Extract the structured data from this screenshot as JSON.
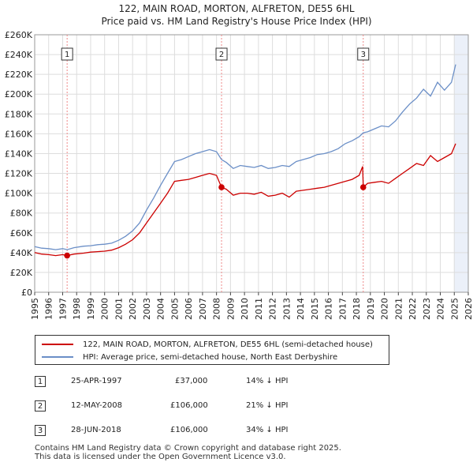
{
  "title_line1": "122, MAIN ROAD, MORTON, ALFRETON, DE55 6HL",
  "title_line2": "Price paid vs. HM Land Registry's House Price Index (HPI)",
  "colors": {
    "property": "#cc0000",
    "hpi": "#6b8fc7",
    "grid": "#dddddd",
    "band": "#dde6f5"
  },
  "legend": {
    "property": "122, MAIN ROAD, MORTON, ALFRETON, DE55 6HL (semi-detached house)",
    "hpi": "HPI: Average price, semi-detached house, North East Derbyshire"
  },
  "transactions": [
    {
      "num": "1",
      "date": "25-APR-1997",
      "price": "£37,000",
      "diff": "14% ↓ HPI"
    },
    {
      "num": "2",
      "date": "12-MAY-2008",
      "price": "£106,000",
      "diff": "21% ↓ HPI"
    },
    {
      "num": "3",
      "date": "28-JUN-2018",
      "price": "£106,000",
      "diff": "34% ↓ HPI"
    }
  ],
  "footer_line1": "Contains HM Land Registry data © Crown copyright and database right 2025.",
  "footer_line2": "This data is licensed under the Open Government Licence v3.0.",
  "chart_data": {
    "type": "line",
    "title": "122, MAIN ROAD, MORTON, ALFRETON, DE55 6HL — Price paid vs. HM Land Registry's House Price Index (HPI)",
    "xlim": [
      1995,
      2026
    ],
    "ylim": [
      0,
      260000
    ],
    "x_ticks": [
      1995,
      1996,
      1997,
      1998,
      1999,
      2000,
      2001,
      2002,
      2003,
      2004,
      2005,
      2006,
      2007,
      2008,
      2009,
      2010,
      2011,
      2012,
      2013,
      2014,
      2015,
      2016,
      2017,
      2018,
      2019,
      2020,
      2021,
      2022,
      2023,
      2024,
      2025,
      2026
    ],
    "y_ticks": [
      0,
      20000,
      40000,
      60000,
      80000,
      100000,
      120000,
      140000,
      160000,
      180000,
      200000,
      220000,
      240000,
      260000
    ],
    "y_tick_labels": [
      "£0",
      "£20K",
      "£40K",
      "£60K",
      "£80K",
      "£100K",
      "£120K",
      "£140K",
      "£160K",
      "£180K",
      "£200K",
      "£220K",
      "£240K",
      "£260K"
    ],
    "future_shading_from": 2025.0,
    "markers": [
      {
        "label": "1",
        "x": 1997.32,
        "y": 37000
      },
      {
        "label": "2",
        "x": 2008.36,
        "y": 106000
      },
      {
        "label": "3",
        "x": 2018.49,
        "y": 106000
      }
    ],
    "series": [
      {
        "name": "122, MAIN ROAD, MORTON, ALFRETON, DE55 6HL (semi-detached house)",
        "x": [
          1995,
          1995.5,
          1996,
          1996.5,
          1997,
          1997.32,
          1997.8,
          1998.5,
          1999,
          1999.5,
          2000,
          2000.5,
          2001,
          2001.5,
          2002,
          2002.5,
          2003,
          2003.5,
          2004,
          2004.5,
          2005,
          2005.5,
          2006,
          2006.5,
          2007,
          2007.5,
          2008,
          2008.36,
          2008.7,
          2009.2,
          2009.7,
          2010.2,
          2010.7,
          2011.2,
          2011.7,
          2012.2,
          2012.7,
          2013.2,
          2013.7,
          2014.2,
          2014.7,
          2015.2,
          2015.7,
          2016.2,
          2016.7,
          2017.2,
          2017.7,
          2018.2,
          2018.45,
          2018.49,
          2018.8,
          2019.3,
          2019.8,
          2020.3,
          2020.8,
          2021.3,
          2021.8,
          2022.3,
          2022.8,
          2023.3,
          2023.8,
          2024.3,
          2024.8,
          2025.1
        ],
        "values": [
          40000,
          38500,
          38000,
          37000,
          38000,
          37000,
          38500,
          39500,
          40500,
          41000,
          41500,
          42500,
          45000,
          48500,
          53000,
          60000,
          70000,
          80000,
          90000,
          100000,
          112000,
          113000,
          114000,
          116000,
          118000,
          120000,
          118000,
          106000,
          104000,
          98000,
          100000,
          100000,
          99000,
          101000,
          97000,
          98000,
          100000,
          96000,
          102000,
          103000,
          104000,
          105000,
          106000,
          108000,
          110000,
          112000,
          114000,
          118000,
          127000,
          106000,
          110000,
          111000,
          112000,
          110000,
          115000,
          120000,
          125000,
          130000,
          128000,
          138000,
          132000,
          136000,
          140000,
          150000
        ]
      },
      {
        "name": "HPI: Average price, semi-detached house, North East Derbyshire",
        "x": [
          1995,
          1995.5,
          1996,
          1996.5,
          1997,
          1997.32,
          1997.8,
          1998.5,
          1999,
          1999.5,
          2000,
          2000.5,
          2001,
          2001.5,
          2002,
          2002.5,
          2003,
          2003.5,
          2004,
          2004.5,
          2005,
          2005.5,
          2006,
          2006.5,
          2007,
          2007.5,
          2008,
          2008.36,
          2008.7,
          2009.2,
          2009.7,
          2010.2,
          2010.7,
          2011.2,
          2011.7,
          2012.2,
          2012.7,
          2013.2,
          2013.7,
          2014.2,
          2014.7,
          2015.2,
          2015.7,
          2016.2,
          2016.7,
          2017.2,
          2017.7,
          2018.2,
          2018.49,
          2018.8,
          2019.3,
          2019.8,
          2020.3,
          2020.8,
          2021.3,
          2021.8,
          2022.3,
          2022.8,
          2023.3,
          2023.8,
          2024.3,
          2024.8,
          2025.1
        ],
        "values": [
          46000,
          44500,
          44000,
          43000,
          44000,
          43000,
          45000,
          46500,
          47000,
          48000,
          48500,
          49500,
          52500,
          56500,
          62000,
          70000,
          83000,
          95000,
          108000,
          120000,
          132000,
          134000,
          137000,
          140000,
          142000,
          144000,
          142000,
          134000,
          131000,
          125000,
          128000,
          127000,
          126000,
          128000,
          125000,
          126000,
          128000,
          127000,
          132000,
          134000,
          136000,
          139000,
          140000,
          142000,
          145000,
          150000,
          153000,
          157000,
          161000,
          162000,
          165000,
          168000,
          167000,
          173000,
          182000,
          190000,
          196000,
          205000,
          198000,
          212000,
          204000,
          212000,
          230000
        ]
      }
    ]
  }
}
